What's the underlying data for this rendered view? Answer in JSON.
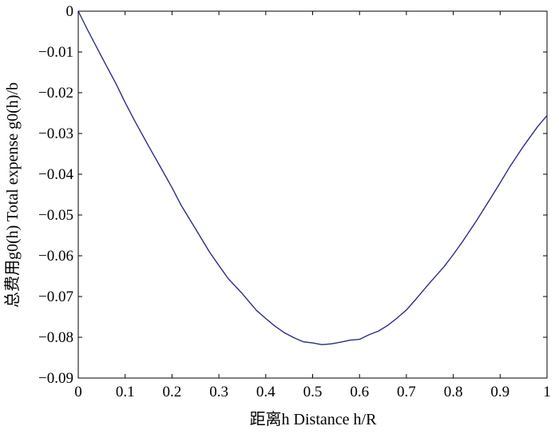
{
  "chart_data": {
    "type": "line",
    "title": "",
    "xlabel": "距离h Distance h/R",
    "ylabel": "总费用g0(h) Total expense g0(h)/b",
    "xlim": [
      0,
      1
    ],
    "ylim": [
      -0.09,
      0
    ],
    "grid": false,
    "x_ticks": [
      "0",
      "0.1",
      "0.2",
      "0.3",
      "0.4",
      "0.5",
      "0.6",
      "0.7",
      "0.8",
      "0.9",
      "1"
    ],
    "y_ticks": [
      "0",
      "−0.01",
      "−0.02",
      "−0.03",
      "−0.04",
      "−0.05",
      "−0.06",
      "−0.07",
      "−0.08",
      "−0.09"
    ],
    "series": [
      {
        "color": "#2b2b8c",
        "x": [
          0,
          0.02,
          0.05,
          0.08,
          0.1,
          0.12,
          0.15,
          0.18,
          0.2,
          0.22,
          0.25,
          0.28,
          0.3,
          0.32,
          0.35,
          0.38,
          0.4,
          0.42,
          0.44,
          0.46,
          0.48,
          0.5,
          0.52,
          0.54,
          0.56,
          0.58,
          0.6,
          0.62,
          0.64,
          0.66,
          0.68,
          0.7,
          0.72,
          0.75,
          0.78,
          0.8,
          0.82,
          0.85,
          0.88,
          0.9,
          0.92,
          0.95,
          0.98,
          1.0
        ],
        "y": [
          0,
          -0.0046,
          -0.0112,
          -0.0177,
          -0.0224,
          -0.0268,
          -0.0331,
          -0.0392,
          -0.0433,
          -0.0477,
          -0.0534,
          -0.0591,
          -0.0624,
          -0.0656,
          -0.0693,
          -0.0734,
          -0.0754,
          -0.0773,
          -0.0789,
          -0.0801,
          -0.0811,
          -0.0814,
          -0.0818,
          -0.0816,
          -0.0812,
          -0.0807,
          -0.0805,
          -0.0794,
          -0.0785,
          -0.0771,
          -0.0753,
          -0.0733,
          -0.0707,
          -0.0666,
          -0.0627,
          -0.0597,
          -0.0565,
          -0.0513,
          -0.0458,
          -0.0421,
          -0.0383,
          -0.0331,
          -0.0283,
          -0.0256
        ]
      }
    ]
  }
}
